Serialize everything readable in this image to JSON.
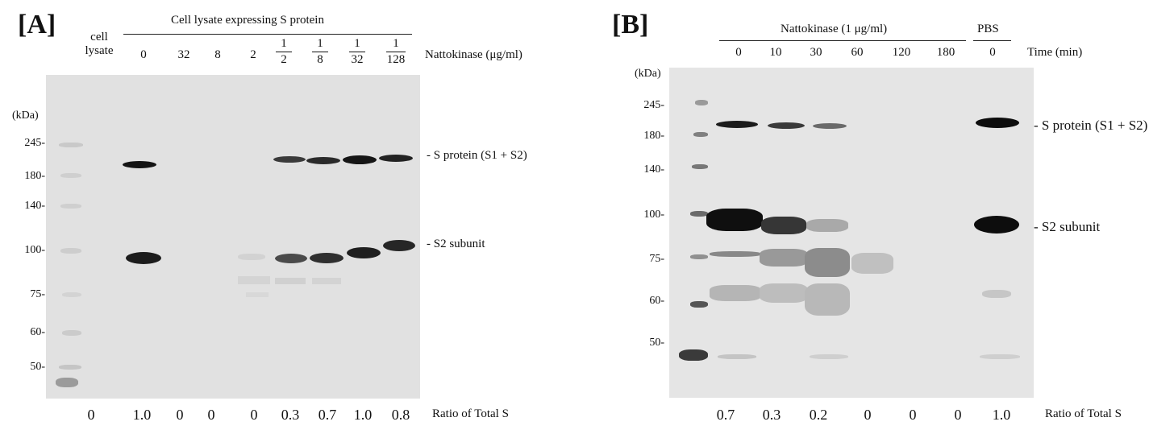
{
  "panelA": {
    "label": "[A]",
    "header": "Cell lysate expressing S protein",
    "lane0_label_line1": "cell",
    "lane0_label_line2": "lysate",
    "conc_simple": [
      "0",
      "32",
      "8",
      "2"
    ],
    "conc_fracs": [
      {
        "num": "1",
        "den": "2"
      },
      {
        "num": "1",
        "den": "8"
      },
      {
        "num": "1",
        "den": "32"
      },
      {
        "num": "1",
        "den": "128"
      }
    ],
    "conc_unit": "Nattokinase (μg/ml)",
    "kda": "(kDa)",
    "markers": [
      "245-",
      "180-",
      "140-",
      "100-",
      "75-",
      "60-",
      "50-"
    ],
    "band_labels": [
      "- S protein (S1 + S2)",
      "- S2 subunit"
    ],
    "ratios": [
      "0",
      "1.0",
      "0",
      "0",
      "0",
      "0.3",
      "0.7",
      "1.0",
      "0.8"
    ],
    "ratio_label": "Ratio of Total S"
  },
  "panelB": {
    "label": "[B]",
    "header": "Nattokinase  (1 μg/ml)",
    "header2": "PBS",
    "times": [
      "0",
      "10",
      "30",
      "60",
      "120",
      "180",
      "0"
    ],
    "time_unit": "Time (min)",
    "kda": "(kDa)",
    "markers": [
      "245-",
      "180-",
      "140-",
      "100-",
      "75-",
      "60-",
      "50-"
    ],
    "band_labels": [
      "- S protein (S1 + S2)",
      "- S2 subunit"
    ],
    "ratios": [
      "0.7",
      "0.3",
      "0.2",
      "0",
      "0",
      "0",
      "1.0"
    ],
    "ratio_label": "Ratio of Total S"
  }
}
